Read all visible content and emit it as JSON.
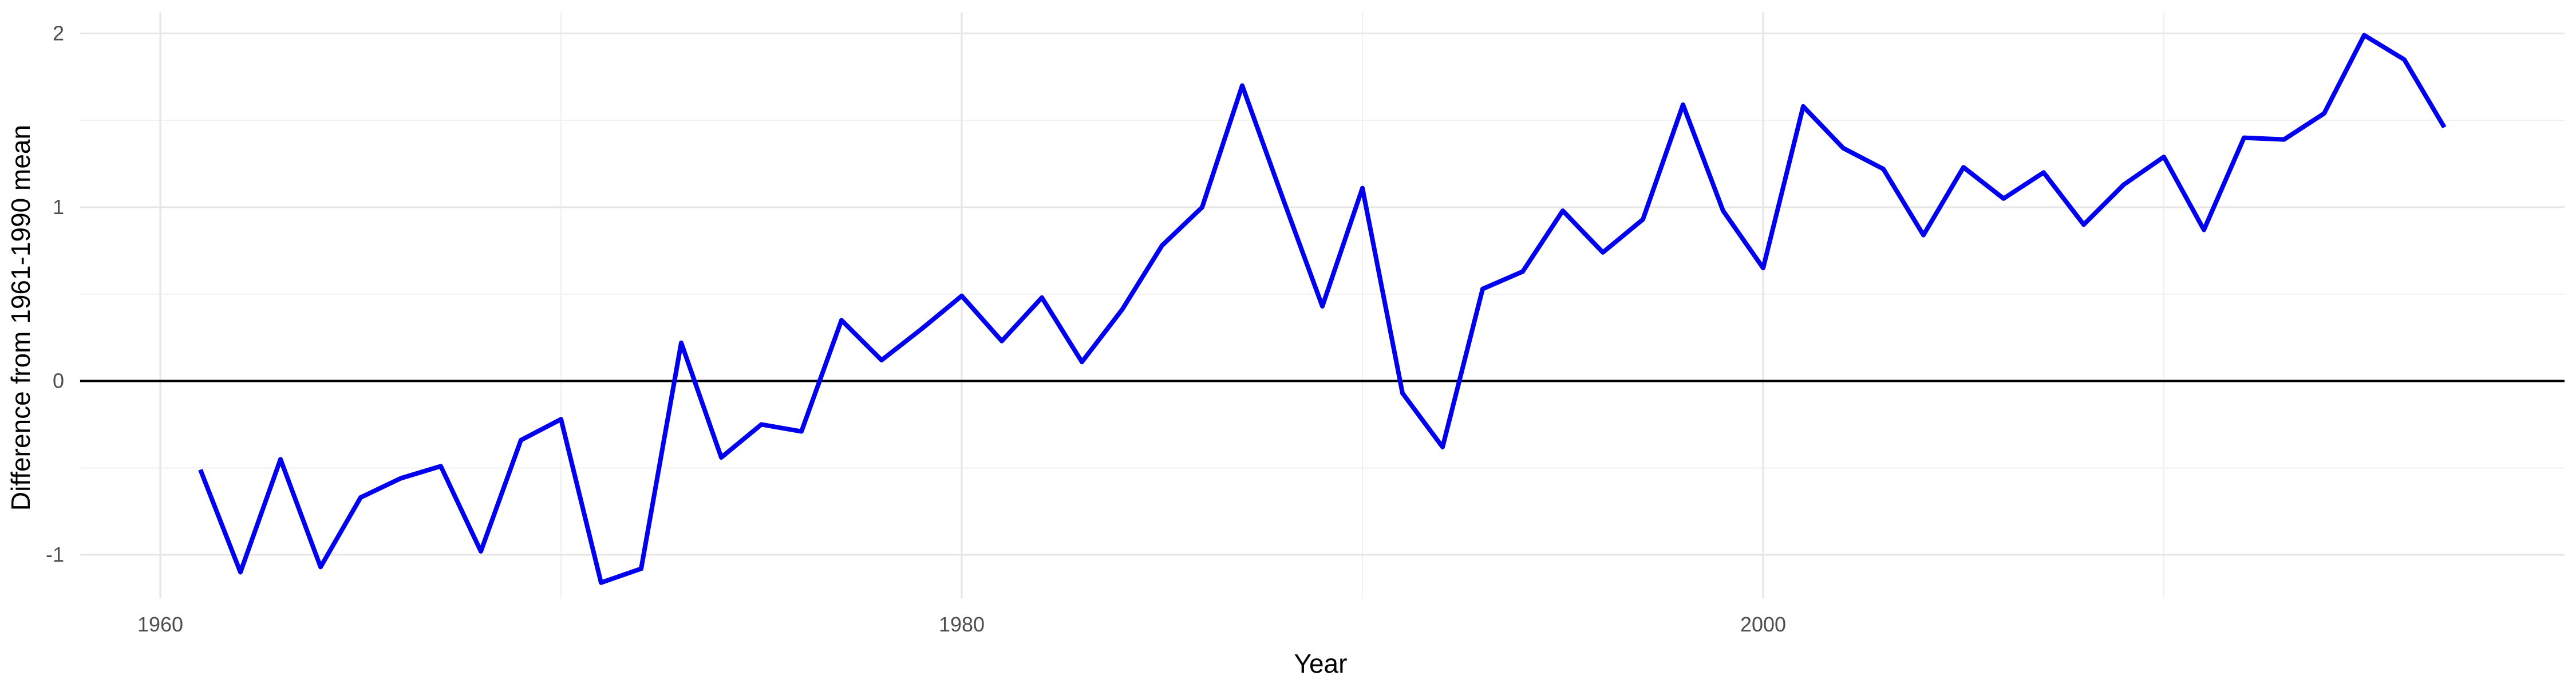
{
  "chart_data": {
    "type": "line",
    "title": "",
    "xlabel": "Year",
    "ylabel": "Difference from 1961-1990 mean",
    "x_ticks": [
      1960,
      1980,
      2000
    ],
    "x_tick_labels": [
      "1960",
      "1980",
      "2000"
    ],
    "y_ticks": [
      -1,
      0,
      1,
      2
    ],
    "y_tick_labels": [
      "-1",
      "0",
      "1",
      "2"
    ],
    "xlim": [
      1958,
      2020
    ],
    "ylim": [
      -1.25,
      2.12
    ],
    "grid": true,
    "reference_line": 0,
    "legend": "none",
    "colors": {
      "line": "#0000ee",
      "reference": "#000000",
      "grid_major": "#e6e6e6",
      "grid_minor": "#f0f0f0",
      "background": "#ffffff"
    },
    "series": [
      {
        "x": [
          1961,
          1962,
          1963,
          1964,
          1965,
          1966,
          1967,
          1968,
          1969,
          1970,
          1971,
          1972,
          1973,
          1974,
          1975,
          1976,
          1977,
          1978,
          1979,
          1980,
          1981,
          1982,
          1983,
          1984,
          1985,
          1986,
          1987,
          1988,
          1989,
          1990,
          1991,
          1992,
          1993,
          1994,
          1995,
          1996,
          1997,
          1998,
          1999,
          2000,
          2001,
          2002,
          2003,
          2004,
          2005,
          2006,
          2007,
          2008,
          2009,
          2010,
          2011,
          2012,
          2013,
          2014,
          2015,
          2016,
          2017
        ],
        "values": [
          -0.51,
          -1.1,
          -0.45,
          -1.07,
          -0.67,
          -0.56,
          -0.49,
          -0.98,
          -0.34,
          -0.22,
          -1.16,
          -1.08,
          0.22,
          -0.44,
          -0.25,
          -0.29,
          0.35,
          0.12,
          0.3,
          0.49,
          0.23,
          0.48,
          0.11,
          0.41,
          0.78,
          1.0,
          1.7,
          1.06,
          0.43,
          1.11,
          -0.07,
          -0.38,
          0.53,
          0.63,
          0.98,
          0.74,
          0.93,
          1.59,
          0.98,
          0.65,
          1.58,
          1.34,
          1.22,
          0.84,
          1.23,
          1.05,
          1.2,
          0.9,
          1.13,
          1.29,
          0.87,
          1.4,
          1.39,
          1.54,
          1.99,
          1.85,
          1.46
        ]
      }
    ]
  }
}
